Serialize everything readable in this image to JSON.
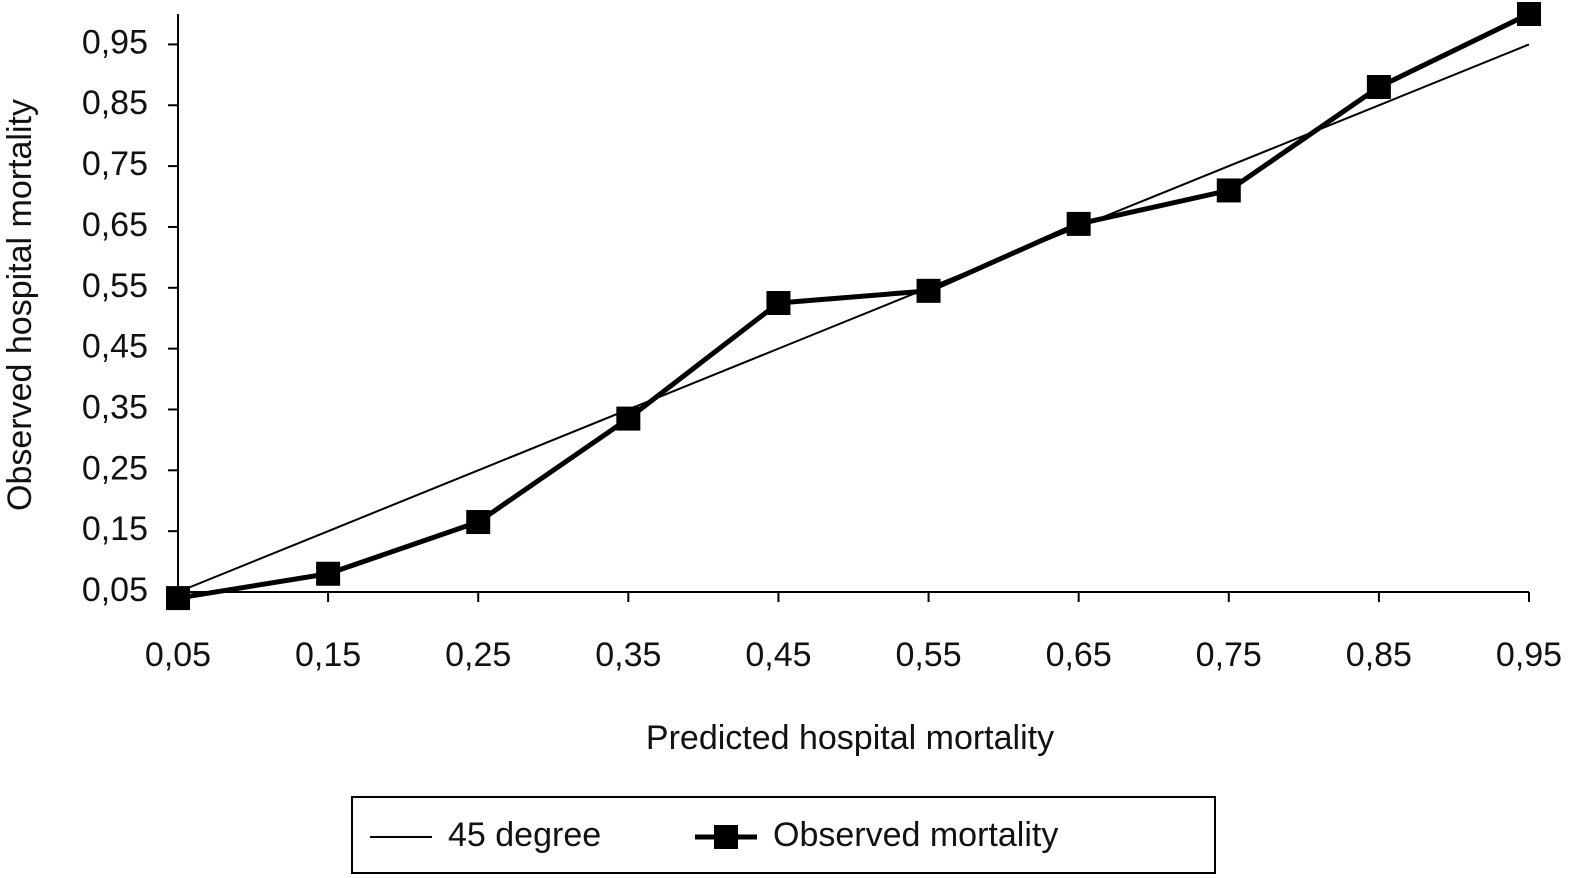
{
  "chart_data": {
    "type": "line",
    "x_label": "Predicted hospital mortality",
    "y_label": "Observed hospital mortality",
    "x": [
      0.05,
      0.15,
      0.25,
      0.35,
      0.45,
      0.55,
      0.65,
      0.75,
      0.85,
      0.95
    ],
    "series": [
      {
        "name": "45 degree",
        "color": "#000000",
        "line_width": 2,
        "marker": "none",
        "values": [
          0.05,
          0.15,
          0.25,
          0.35,
          0.45,
          0.55,
          0.65,
          0.75,
          0.85,
          0.95
        ]
      },
      {
        "name": "Observed mortality",
        "color": "#000000",
        "line_width": 5,
        "marker": "square",
        "values": [
          0.04,
          0.08,
          0.165,
          0.335,
          0.525,
          0.545,
          0.655,
          0.71,
          0.88,
          1.0
        ]
      }
    ],
    "xlim": [
      0.05,
      0.95
    ],
    "ylim": [
      0.05,
      1.0
    ],
    "xticks": [
      {
        "value": 0.05,
        "label": "0,05"
      },
      {
        "value": 0.15,
        "label": "0,15"
      },
      {
        "value": 0.25,
        "label": "0,25"
      },
      {
        "value": 0.35,
        "label": "0,35"
      },
      {
        "value": 0.45,
        "label": "0,45"
      },
      {
        "value": 0.55,
        "label": "0,55"
      },
      {
        "value": 0.65,
        "label": "0,65"
      },
      {
        "value": 0.75,
        "label": "0,75"
      },
      {
        "value": 0.85,
        "label": "0,85"
      },
      {
        "value": 0.95,
        "label": "0,95"
      }
    ],
    "yticks": [
      {
        "value": 0.05,
        "label": "0,05"
      },
      {
        "value": 0.15,
        "label": "0,15"
      },
      {
        "value": 0.25,
        "label": "0,25"
      },
      {
        "value": 0.35,
        "label": "0,35"
      },
      {
        "value": 0.45,
        "label": "0,45"
      },
      {
        "value": 0.55,
        "label": "0,55"
      },
      {
        "value": 0.65,
        "label": "0,65"
      },
      {
        "value": 0.75,
        "label": "0,75"
      },
      {
        "value": 0.85,
        "label": "0,85"
      },
      {
        "value": 0.95,
        "label": "0,95"
      }
    ],
    "grid": false,
    "legend": "bottom"
  }
}
